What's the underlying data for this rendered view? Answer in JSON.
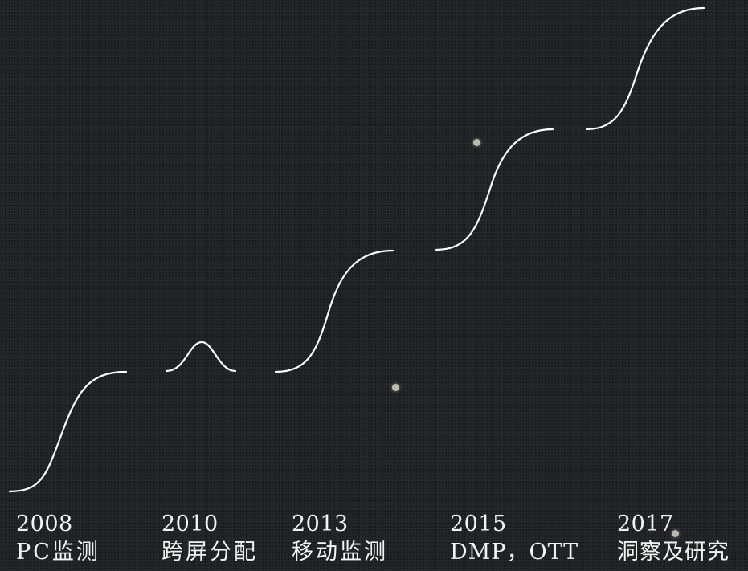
{
  "milestones": [
    {
      "year": "2008",
      "label": "PC监测"
    },
    {
      "year": "2010",
      "label": "跨屏分配"
    },
    {
      "year": "2013",
      "label": "移动监测"
    },
    {
      "year": "2015",
      "label": "DMP，OTT"
    },
    {
      "year": "2017",
      "label": "洞察及研究"
    }
  ],
  "colors": {
    "background": "#1d2023",
    "curve": "#ffffff",
    "text": "#f3f3f3"
  }
}
